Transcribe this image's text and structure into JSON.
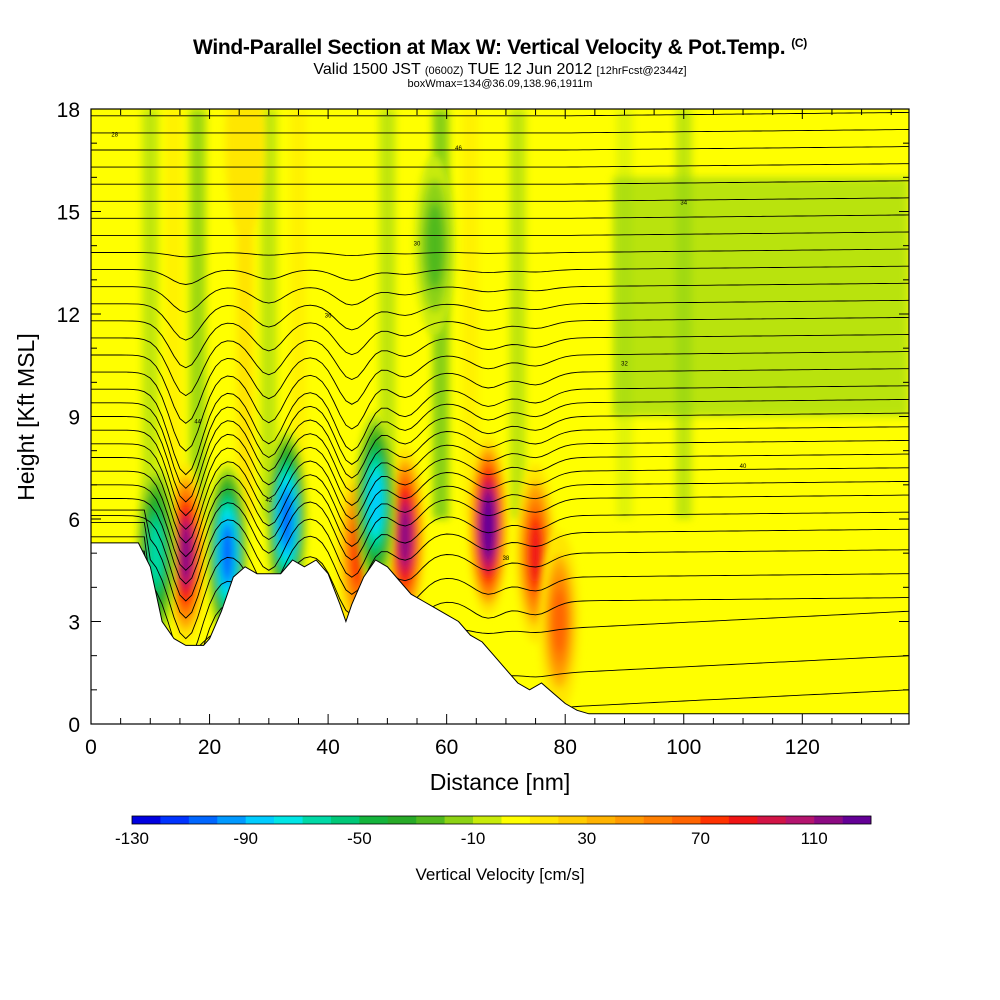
{
  "title": {
    "main": "Wind-Parallel Section at Max W: Vertical Velocity & Pot.Temp.",
    "copyright": "(C)",
    "valid_prefix": "Valid 1500 JST",
    "valid_z": "(0600Z)",
    "valid_date": "TUE 12 Jun 2012",
    "forecast": "[12hrFcst@2344z]",
    "box": "boxWmax=134@36.09,138.96,1911m"
  },
  "chart_data": {
    "type": "heatmap",
    "xlabel": "Distance [nm]",
    "ylabel": "Height [Kft MSL]",
    "xlim": [
      0,
      138
    ],
    "ylim": [
      0,
      18
    ],
    "x_ticks": [
      0,
      20,
      40,
      60,
      80,
      100,
      120
    ],
    "y_ticks": [
      0,
      3,
      6,
      9,
      12,
      15,
      18
    ],
    "colorbar": {
      "label": "Vertical Velocity [cm/s]",
      "tick_labels": [
        "-130",
        "-90",
        "-50",
        "-10",
        "30",
        "70",
        "110"
      ],
      "range": [
        -130,
        130
      ],
      "colors": [
        "#0000e0",
        "#0033ff",
        "#0066ff",
        "#0099ff",
        "#00ccff",
        "#00e6e6",
        "#00d9a6",
        "#00c878",
        "#14b43c",
        "#28aa28",
        "#50b91e",
        "#8cd214",
        "#c8eb0a",
        "#ffff00",
        "#ffe600",
        "#ffcc00",
        "#ffb300",
        "#ff9900",
        "#ff7f00",
        "#ff6400",
        "#ff3200",
        "#f01414",
        "#d21446",
        "#b4146e",
        "#8c0a82",
        "#640096"
      ]
    },
    "terrain_kft": [
      [
        0,
        5.3
      ],
      [
        8,
        5.3
      ],
      [
        10,
        4.6
      ],
      [
        12,
        3.0
      ],
      [
        14,
        2.5
      ],
      [
        16,
        2.3
      ],
      [
        19,
        2.3
      ],
      [
        20,
        2.5
      ],
      [
        22,
        3.3
      ],
      [
        24,
        4.3
      ],
      [
        26,
        4.6
      ],
      [
        28,
        4.4
      ],
      [
        30,
        4.4
      ],
      [
        32,
        4.4
      ],
      [
        34,
        4.8
      ],
      [
        36,
        4.6
      ],
      [
        38,
        4.8
      ],
      [
        40,
        4.4
      ],
      [
        42,
        3.5
      ],
      [
        43,
        3.0
      ],
      [
        44,
        3.5
      ],
      [
        46,
        4.3
      ],
      [
        48,
        4.8
      ],
      [
        50,
        4.6
      ],
      [
        52,
        4.2
      ],
      [
        54,
        3.8
      ],
      [
        56,
        3.6
      ],
      [
        58,
        3.4
      ],
      [
        60,
        3.2
      ],
      [
        62,
        3.0
      ],
      [
        64,
        2.6
      ],
      [
        66,
        2.4
      ],
      [
        68,
        2.0
      ],
      [
        70,
        1.6
      ],
      [
        72,
        1.2
      ],
      [
        74,
        1.0
      ],
      [
        76,
        1.2
      ],
      [
        78,
        0.9
      ],
      [
        80,
        0.6
      ],
      [
        82,
        0.4
      ],
      [
        84,
        0.3
      ],
      [
        86,
        0.3
      ],
      [
        138,
        0.3
      ]
    ],
    "updrafts": [
      {
        "x": 16,
        "y": 5.0,
        "w": 110
      },
      {
        "x": 26,
        "y": 17.0,
        "w": 20
      },
      {
        "x": 45,
        "y": 5.0,
        "w": 70
      },
      {
        "x": 53,
        "y": 5.5,
        "w": 110
      },
      {
        "x": 67,
        "y": 5.8,
        "w": 130
      },
      {
        "x": 75,
        "y": 5.0,
        "w": 80
      },
      {
        "x": 79,
        "y": 3.0,
        "w": 60
      }
    ],
    "downdrafts": [
      {
        "x": 11,
        "y": 5.0,
        "w": -70
      },
      {
        "x": 23,
        "y": 5.0,
        "w": -110
      },
      {
        "x": 33,
        "y": 6.0,
        "w": -110
      },
      {
        "x": 48,
        "y": 6.5,
        "w": -90
      },
      {
        "x": 58,
        "y": 14.0,
        "w": -30
      }
    ],
    "isentrope_labels": [
      "28",
      "30",
      "32",
      "34",
      "36",
      "38",
      "40",
      "42",
      "44",
      "46",
      "48",
      "50"
    ]
  }
}
